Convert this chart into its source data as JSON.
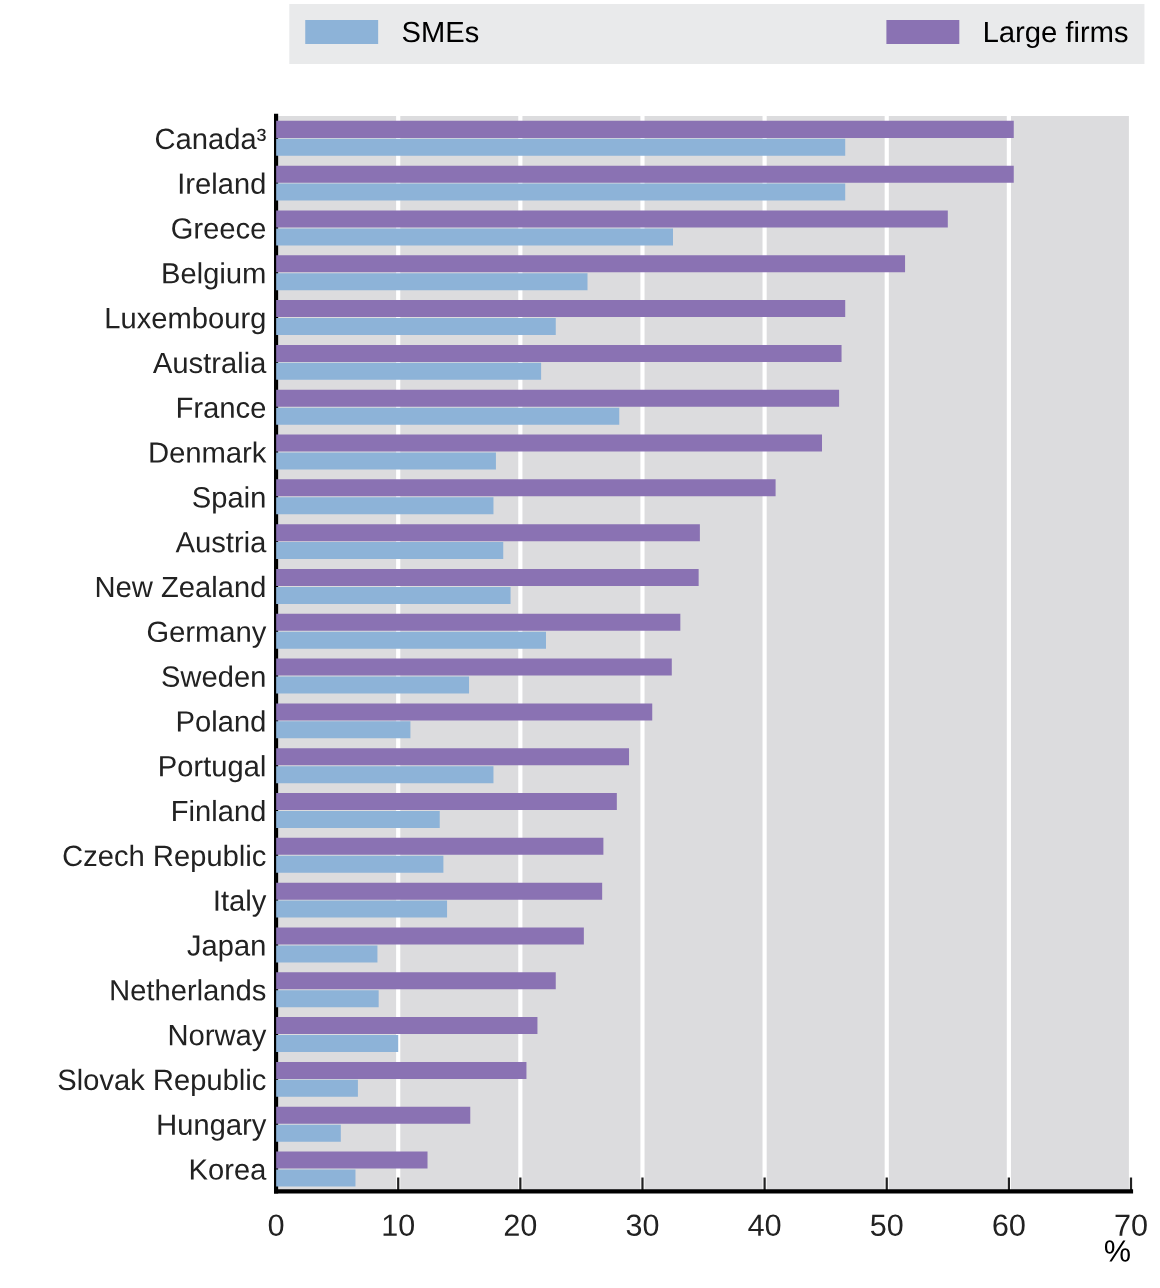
{
  "chart_data": {
    "type": "bar",
    "orientation": "horizontal",
    "xlabel": "%",
    "categories": [
      "Canada³",
      "Ireland",
      "Greece",
      "Belgium",
      "Luxembourg",
      "Australia",
      "France",
      "Denmark",
      "Spain",
      "Austria",
      "New Zealand",
      "Germany",
      "Sweden",
      "Poland",
      "Portugal",
      "Finland",
      "Czech Republic",
      "Italy",
      "Japan",
      "Netherlands",
      "Norway",
      "Slovak Republic",
      "Hungary",
      "Korea"
    ],
    "series": [
      {
        "name": "SMEs",
        "color": "#8db3d8",
        "values": [
          46.6,
          46.6,
          32.5,
          25.5,
          22.9,
          21.7,
          28.1,
          18.0,
          17.8,
          18.6,
          19.2,
          22.1,
          15.8,
          11.0,
          17.8,
          13.4,
          13.7,
          14.0,
          8.3,
          8.4,
          10.0,
          6.7,
          5.3,
          6.5
        ]
      },
      {
        "name": "Large firms",
        "color": "#8a72b3",
        "values": [
          60.4,
          60.4,
          55.0,
          51.5,
          46.6,
          46.3,
          46.1,
          44.7,
          40.9,
          34.7,
          34.6,
          33.1,
          32.4,
          30.8,
          28.9,
          27.9,
          26.8,
          26.7,
          25.2,
          22.9,
          21.4,
          20.5,
          15.9,
          12.4
        ]
      }
    ],
    "xlim": [
      0,
      70
    ],
    "xticks": [
      0,
      10,
      20,
      30,
      40,
      50,
      60,
      70
    ],
    "grid": "x",
    "legend": "top"
  }
}
